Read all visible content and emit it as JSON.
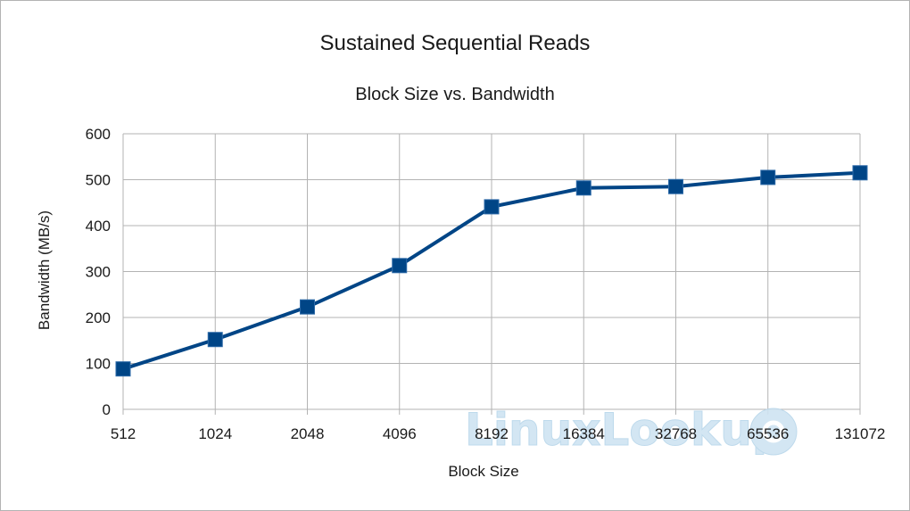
{
  "chart_data": {
    "type": "line",
    "title": "Sustained Sequential Reads",
    "subtitle": "Block Size vs. Bandwidth",
    "xlabel": "Block Size",
    "ylabel": "Bandwidth (MB/s)",
    "categories": [
      "512",
      "1024",
      "2048",
      "4096",
      "8192",
      "16384",
      "32768",
      "65536",
      "131072"
    ],
    "series": [
      {
        "values": [
          88,
          152,
          223,
          313,
          441,
          482,
          485,
          505,
          515
        ]
      }
    ],
    "ylim": [
      0,
      600
    ],
    "yticks": [
      "0",
      "100",
      "200",
      "300",
      "400",
      "500",
      "600"
    ],
    "grid": true,
    "legend": "none",
    "colors": {
      "series": "#004586",
      "grid": "#b3b3b3"
    }
  },
  "watermark": {
    "text": "LinuxLookup",
    "icon": "at-sign-icon"
  }
}
